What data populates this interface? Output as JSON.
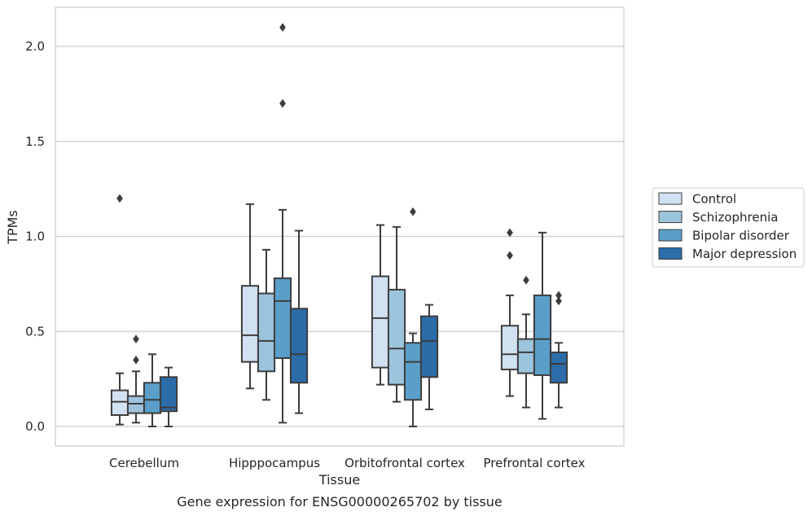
{
  "chart_data": {
    "type": "box",
    "xlabel": "Tissue",
    "ylabel": "TPMs",
    "caption": "Gene expression for ENSG00000265702 by tissue",
    "categories": [
      "Cerebellum",
      "Hipppocampus",
      "Orbitofrontal cortex",
      "Prefrontal cortex"
    ],
    "ylim": [
      -0.1,
      2.22
    ],
    "yticks": [
      0.0,
      0.5,
      1.0,
      1.5,
      2.0
    ],
    "ytick_labels": [
      "0.0",
      "0.5",
      "1.0",
      "1.5",
      "2.0"
    ],
    "grid": "horizontal",
    "legend_position": "right",
    "series": [
      {
        "name": "Control",
        "color": "#d2e1f1",
        "boxes": [
          {
            "whislo": 0.01,
            "q1": 0.06,
            "med": 0.13,
            "q3": 0.19,
            "whishi": 0.28,
            "fliers": [
              1.2
            ]
          },
          {
            "whislo": 0.2,
            "q1": 0.34,
            "med": 0.48,
            "q3": 0.74,
            "whishi": 1.17,
            "fliers": []
          },
          {
            "whislo": 0.22,
            "q1": 0.31,
            "med": 0.57,
            "q3": 0.79,
            "whishi": 1.06,
            "fliers": []
          },
          {
            "whislo": 0.16,
            "q1": 0.3,
            "med": 0.38,
            "q3": 0.53,
            "whishi": 0.69,
            "fliers": [
              0.9,
              1.02
            ]
          }
        ]
      },
      {
        "name": "Schizophrenia",
        "color": "#9dc4dd",
        "boxes": [
          {
            "whislo": 0.02,
            "q1": 0.07,
            "med": 0.12,
            "q3": 0.16,
            "whishi": 0.29,
            "fliers": [
              0.35,
              0.46
            ]
          },
          {
            "whislo": 0.14,
            "q1": 0.29,
            "med": 0.45,
            "q3": 0.7,
            "whishi": 0.93,
            "fliers": []
          },
          {
            "whislo": 0.13,
            "q1": 0.22,
            "med": 0.41,
            "q3": 0.72,
            "whishi": 1.05,
            "fliers": []
          },
          {
            "whislo": 0.1,
            "q1": 0.28,
            "med": 0.39,
            "q3": 0.46,
            "whishi": 0.59,
            "fliers": [
              0.77
            ]
          }
        ]
      },
      {
        "name": "Bipolar disorder",
        "color": "#5a9fc9",
        "boxes": [
          {
            "whislo": 0.0,
            "q1": 0.07,
            "med": 0.14,
            "q3": 0.23,
            "whishi": 0.38,
            "fliers": []
          },
          {
            "whislo": 0.02,
            "q1": 0.36,
            "med": 0.66,
            "q3": 0.78,
            "whishi": 1.14,
            "fliers": [
              1.7,
              2.1
            ]
          },
          {
            "whislo": 0.0,
            "q1": 0.14,
            "med": 0.34,
            "q3": 0.44,
            "whishi": 0.49,
            "fliers": [
              1.13
            ]
          },
          {
            "whislo": 0.04,
            "q1": 0.27,
            "med": 0.46,
            "q3": 0.69,
            "whishi": 1.02,
            "fliers": []
          }
        ]
      },
      {
        "name": "Major depression",
        "color": "#2b6ca9",
        "boxes": [
          {
            "whislo": 0.0,
            "q1": 0.08,
            "med": 0.1,
            "q3": 0.26,
            "whishi": 0.31,
            "fliers": []
          },
          {
            "whislo": 0.07,
            "q1": 0.23,
            "med": 0.38,
            "q3": 0.62,
            "whishi": 1.03,
            "fliers": []
          },
          {
            "whislo": 0.09,
            "q1": 0.26,
            "med": 0.45,
            "q3": 0.58,
            "whishi": 0.64,
            "fliers": []
          },
          {
            "whislo": 0.1,
            "q1": 0.23,
            "med": 0.33,
            "q3": 0.39,
            "whishi": 0.44,
            "fliers": [
              0.66,
              0.69
            ]
          }
        ]
      }
    ]
  },
  "colors": {
    "edge": "#3d3d3d",
    "grid": "#cccccc",
    "frame": "#cccccc"
  }
}
